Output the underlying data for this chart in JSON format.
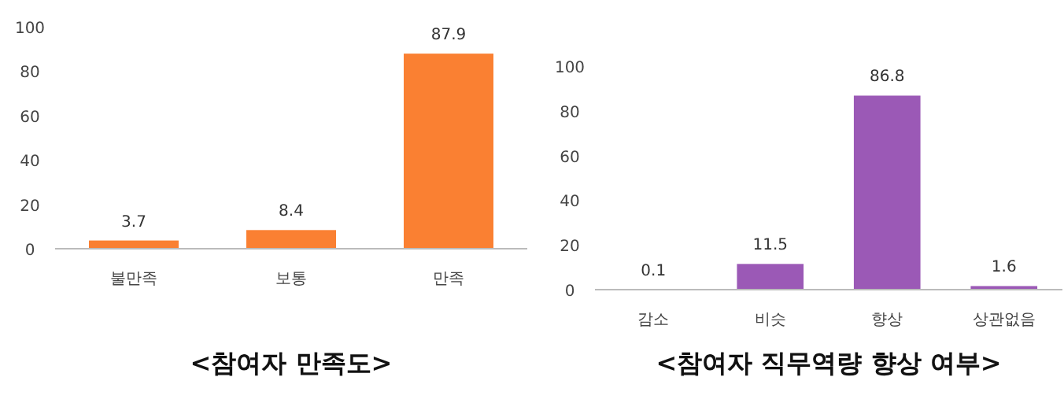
{
  "chart_data": [
    {
      "type": "bar",
      "title": "<참여자 만족도>",
      "categories": [
        "불만족",
        "보통",
        "만족"
      ],
      "values": [
        3.7,
        8.4,
        87.9
      ],
      "color": "#fa8032",
      "ylim": [
        0,
        100
      ],
      "yticks": [
        0,
        20,
        40,
        60,
        80,
        100
      ],
      "data_labels": true,
      "grid": false
    },
    {
      "type": "bar",
      "title": "<참여자 직무역량 향상 여부>",
      "categories": [
        "감소",
        "비슷",
        "향상",
        "상관없음"
      ],
      "values": [
        0.1,
        11.5,
        86.8,
        1.6
      ],
      "color": "#9b59b6",
      "ylim": [
        0,
        100
      ],
      "yticks": [
        0,
        20,
        40,
        60,
        80,
        100
      ],
      "data_labels": true,
      "grid": false
    }
  ]
}
